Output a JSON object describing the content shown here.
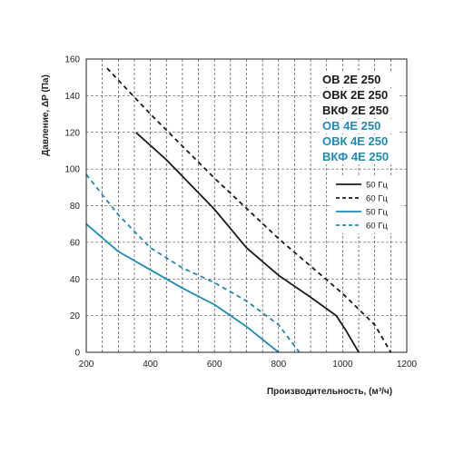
{
  "chart_data": {
    "type": "line",
    "xlabel": "Производительность, (м³/ч)",
    "ylabel": "Давление, ΔP (Па)",
    "xlim": [
      200,
      1200
    ],
    "ylim": [
      0,
      160
    ],
    "x_ticks": [
      200,
      400,
      600,
      800,
      1000,
      1200
    ],
    "y_ticks": [
      0,
      20,
      40,
      60,
      80,
      100,
      120,
      140,
      160
    ],
    "grid": true,
    "legend_position": "right",
    "model_groups": [
      {
        "color": "#1a1a1a",
        "labels": [
          "ОВ 2Е 250",
          "ОВК 2Е 250",
          "ВКФ 2Е 250"
        ]
      },
      {
        "color": "#1b8bb4",
        "labels": [
          "ОВ 4Е 250",
          "ОВК 4Е 250",
          "ВКФ 4Е 250"
        ]
      }
    ],
    "series": [
      {
        "name": "50 Гц",
        "color": "#1a1a1a",
        "dash": "solid",
        "x": [
          355,
          450,
          600,
          700,
          800,
          900,
          980,
          1010,
          1050
        ],
        "y": [
          120,
          105,
          78,
          57,
          42,
          30,
          20,
          12,
          0
        ]
      },
      {
        "name": "60 Гц",
        "color": "#1a1a1a",
        "dash": "dashed",
        "x": [
          265,
          400,
          600,
          800,
          1000,
          1100,
          1150
        ],
        "y": [
          155,
          130,
          95,
          62,
          32,
          15,
          0
        ]
      },
      {
        "name": "50 Гц",
        "color": "#1b8bb4",
        "dash": "solid",
        "x": [
          200,
          300,
          400,
          500,
          600,
          700,
          800
        ],
        "y": [
          70,
          55,
          45,
          35,
          26,
          14,
          0
        ]
      },
      {
        "name": "60 Гц",
        "color": "#1b8bb4",
        "dash": "dashed",
        "x": [
          200,
          300,
          400,
          500,
          600,
          700,
          800,
          865
        ],
        "y": [
          97,
          75,
          57,
          46,
          38,
          28,
          15,
          0
        ]
      }
    ]
  }
}
